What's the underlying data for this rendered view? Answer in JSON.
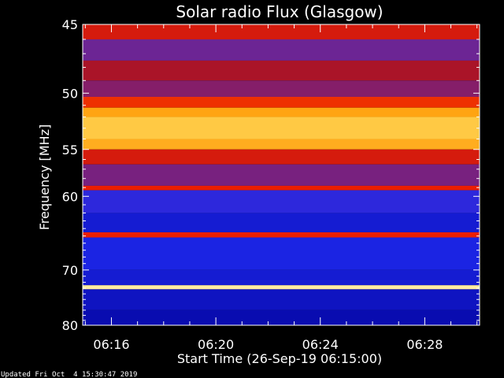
{
  "chart_data": {
    "type": "heatmap",
    "title": "Solar radio Flux (Glasgow)",
    "xlabel": "Start Time (26-Sep-19 06:15:00)",
    "ylabel": "Frequency [MHz]",
    "x_ticks": [
      "06:16",
      "06:20",
      "06:24",
      "06:28"
    ],
    "x_tick_minutes": [
      16,
      20,
      24,
      28
    ],
    "x_range_minutes": [
      14.9,
      30.1
    ],
    "y_ticks": [
      45,
      50,
      55,
      60,
      70,
      80
    ],
    "ylim": [
      45,
      80
    ],
    "y_scale": "reciprocal",
    "colormap": "black-blue-purple-red-orange-yellow-white",
    "bands": [
      {
        "freq_from": 45.0,
        "freq_to": 46.0,
        "level": 0.58
      },
      {
        "freq_from": 46.0,
        "freq_to": 47.5,
        "level": 0.4
      },
      {
        "freq_from": 47.5,
        "freq_to": 49.0,
        "level": 0.5
      },
      {
        "freq_from": 49.0,
        "freq_to": 50.3,
        "level": 0.44
      },
      {
        "freq_from": 50.3,
        "freq_to": 51.2,
        "level": 0.64
      },
      {
        "freq_from": 51.2,
        "freq_to": 52.0,
        "level": 0.78
      },
      {
        "freq_from": 52.0,
        "freq_to": 54.0,
        "level": 0.86
      },
      {
        "freq_from": 54.0,
        "freq_to": 55.0,
        "level": 0.8
      },
      {
        "freq_from": 55.0,
        "freq_to": 56.5,
        "level": 0.58
      },
      {
        "freq_from": 56.5,
        "freq_to": 58.8,
        "level": 0.42
      },
      {
        "freq_from": 58.8,
        "freq_to": 59.3,
        "level": 0.62
      },
      {
        "freq_from": 59.3,
        "freq_to": 62.0,
        "level": 0.28
      },
      {
        "freq_from": 62.0,
        "freq_to": 64.5,
        "level": 0.22
      },
      {
        "freq_from": 64.5,
        "freq_to": 65.2,
        "level": 0.62
      },
      {
        "freq_from": 65.2,
        "freq_to": 70.0,
        "level": 0.24
      },
      {
        "freq_from": 70.0,
        "freq_to": 72.5,
        "level": 0.22
      },
      {
        "freq_from": 72.5,
        "freq_to": 73.2,
        "level": 0.95
      },
      {
        "freq_from": 73.2,
        "freq_to": 77.0,
        "level": 0.2
      },
      {
        "freq_from": 77.0,
        "freq_to": 80.0,
        "level": 0.18
      }
    ],
    "footer": "Updated Fri Oct  4 15:30:47 2019"
  }
}
